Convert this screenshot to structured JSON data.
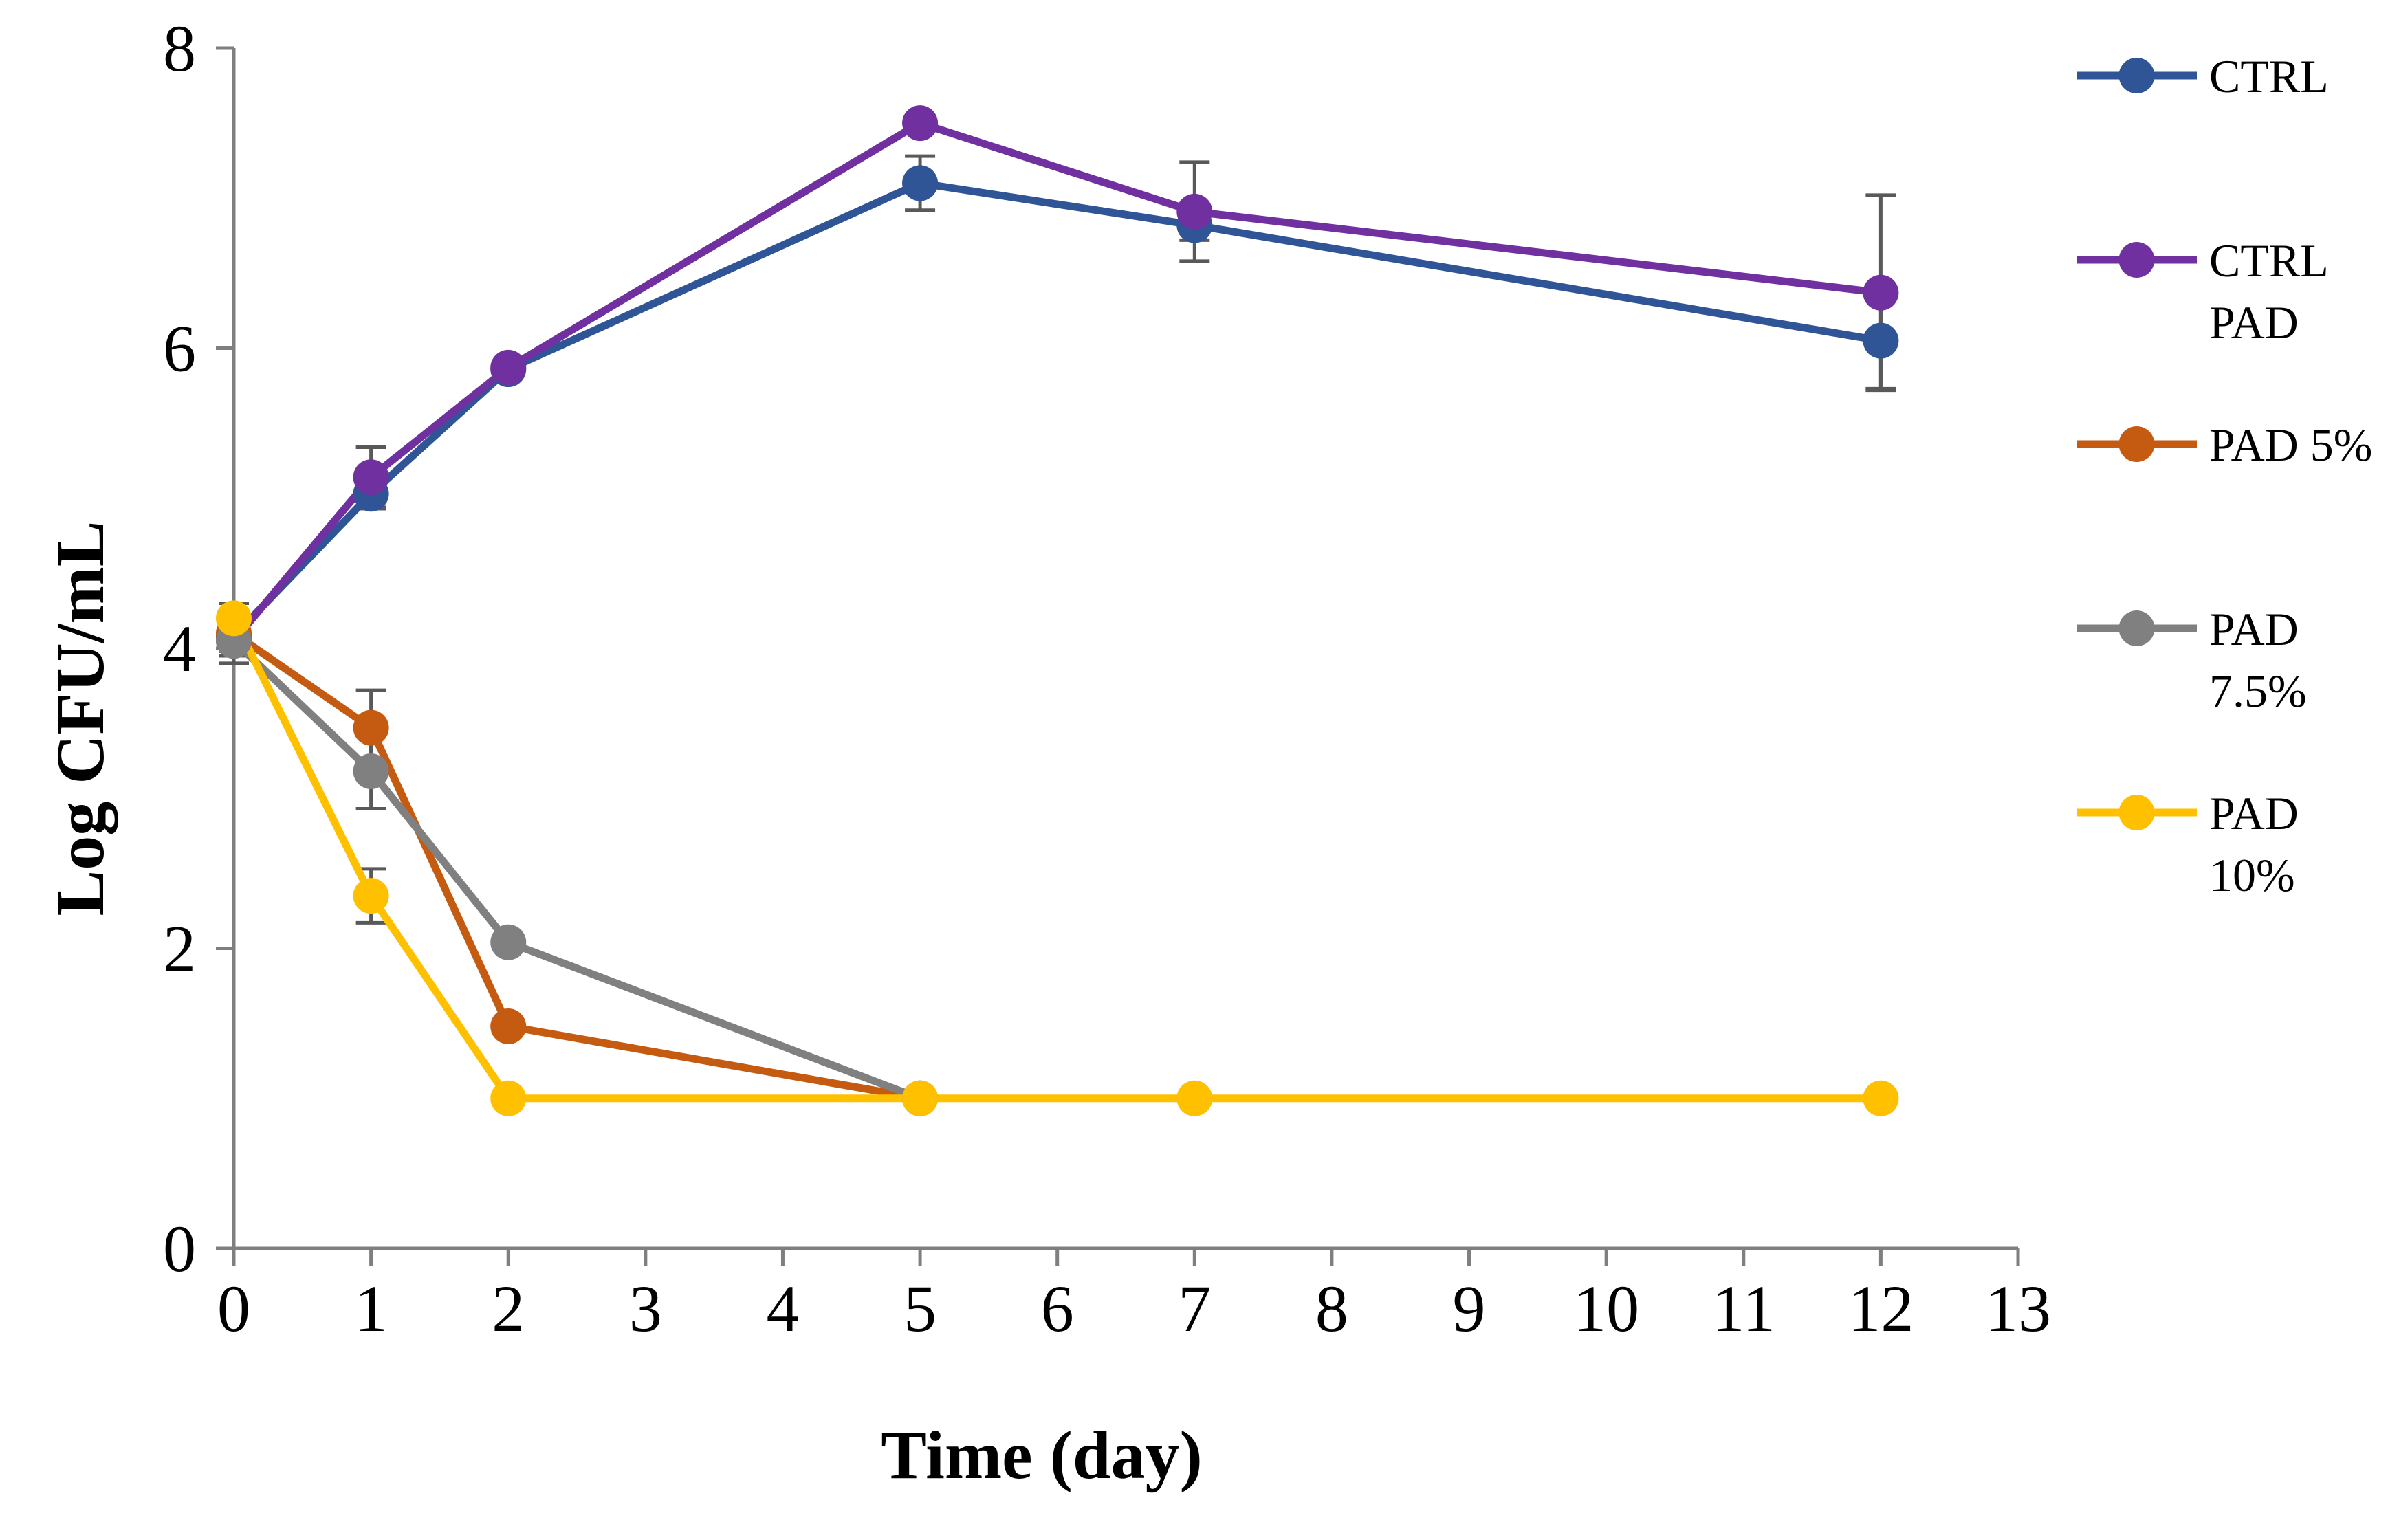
{
  "chart_data": {
    "type": "line",
    "xlabel": "Time (day)",
    "ylabel": "Log CFU/mL",
    "xlim": [
      0,
      13
    ],
    "ylim": [
      0,
      8
    ],
    "xticks": [
      "0",
      "1",
      "2",
      "3",
      "4",
      "5",
      "6",
      "7",
      "8",
      "9",
      "10",
      "11",
      "12",
      "13"
    ],
    "yticks": [
      "0",
      "2",
      "4",
      "6",
      "8"
    ],
    "grid": false,
    "legend_position": "right",
    "series": [
      {
        "name": "CTRL",
        "color": "#2F5597",
        "points": [
          {
            "x": 0,
            "y": 4.08,
            "err": 0.1
          },
          {
            "x": 1,
            "y": 5.03,
            "err": 0.1
          },
          {
            "x": 2,
            "y": 5.86,
            "err": 0.05
          },
          {
            "x": 5,
            "y": 7.1,
            "err": 0.18
          },
          {
            "x": 7,
            "y": 6.82,
            "err": 0.1
          },
          {
            "x": 12,
            "y": 6.05,
            "err": 0.32
          }
        ]
      },
      {
        "name": "CTRL\nPAD",
        "color": "#7030A0",
        "points": [
          {
            "x": 0,
            "y": 4.05,
            "err": 0.1
          },
          {
            "x": 1,
            "y": 5.14,
            "err": 0.2
          },
          {
            "x": 2,
            "y": 5.87,
            "err": 0.05
          },
          {
            "x": 5,
            "y": 7.5,
            "err": 0.05
          },
          {
            "x": 7,
            "y": 6.91,
            "err": 0.33
          },
          {
            "x": 12,
            "y": 6.37,
            "err": 0.65
          }
        ]
      },
      {
        "name": "PAD 5%",
        "color": "#C55A11",
        "points": [
          {
            "x": 0,
            "y": 4.1,
            "err": 0.2
          },
          {
            "x": 1,
            "y": 3.47,
            "err": 0.25
          },
          {
            "x": 2,
            "y": 1.48,
            "err": 0.05
          },
          {
            "x": 5,
            "y": 1.0,
            "err": 0
          }
        ]
      },
      {
        "name": "PAD\n7.5%",
        "color": "#808080",
        "points": [
          {
            "x": 0,
            "y": 4.05,
            "err": 0.1
          },
          {
            "x": 1,
            "y": 3.18,
            "err": 0.25
          },
          {
            "x": 2,
            "y": 2.04,
            "err": 0.05
          },
          {
            "x": 5,
            "y": 1.0,
            "err": 0
          }
        ]
      },
      {
        "name": "PAD\n10%",
        "color": "#FFC000",
        "points": [
          {
            "x": 0,
            "y": 4.2,
            "err": 0.1
          },
          {
            "x": 1,
            "y": 2.35,
            "err": 0.18
          },
          {
            "x": 2,
            "y": 1.0,
            "err": 0
          },
          {
            "x": 5,
            "y": 1.0,
            "err": 0
          },
          {
            "x": 7,
            "y": 1.0,
            "err": 0
          },
          {
            "x": 12,
            "y": 1.0,
            "err": 0
          }
        ]
      }
    ]
  }
}
